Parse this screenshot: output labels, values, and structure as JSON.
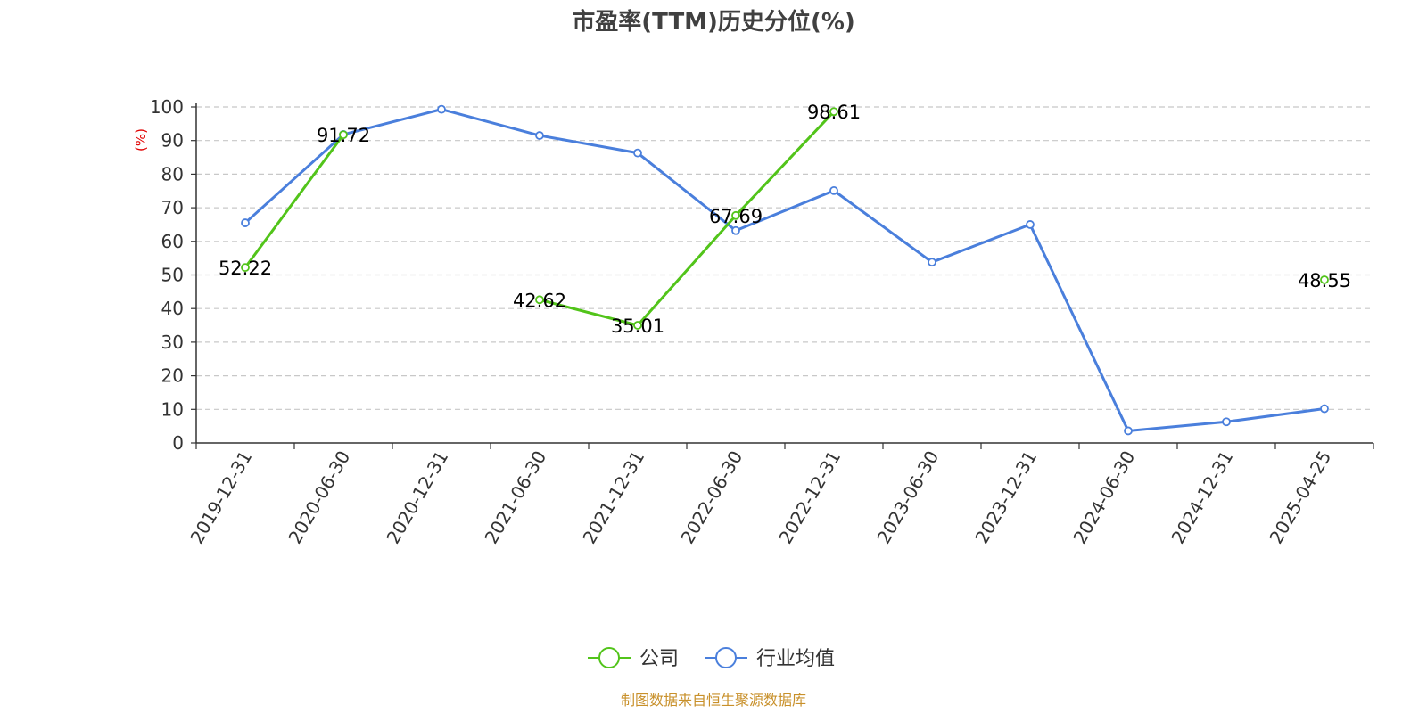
{
  "chart_data": {
    "type": "line",
    "title": "市盈率(TTM)历史分位(%)",
    "ylabel": "(%)",
    "ylim": [
      0,
      100
    ],
    "yticks": [
      0,
      10,
      20,
      30,
      40,
      50,
      60,
      70,
      80,
      90,
      100
    ],
    "grid": true,
    "legend_position": "bottom",
    "categories": [
      "2019-12-31",
      "2020-06-30",
      "2020-12-31",
      "2021-06-30",
      "2021-12-31",
      "2022-06-30",
      "2022-12-31",
      "2023-06-30",
      "2023-12-31",
      "2024-06-30",
      "2024-12-31",
      "2025-04-25"
    ],
    "series": [
      {
        "name": "公司",
        "color": "#52c41a",
        "values": [
          52.22,
          91.72,
          null,
          42.62,
          35.01,
          67.69,
          98.61,
          null,
          null,
          null,
          null,
          48.55
        ],
        "show_labels": true
      },
      {
        "name": "行业均值",
        "color": "#4a7fdc",
        "values": [
          65.5,
          91.8,
          99.3,
          91.5,
          86.3,
          63.2,
          75.1,
          53.8,
          65.0,
          3.6,
          6.3,
          10.2
        ],
        "show_labels": false
      }
    ],
    "source": "制图数据来自恒生聚源数据库"
  }
}
